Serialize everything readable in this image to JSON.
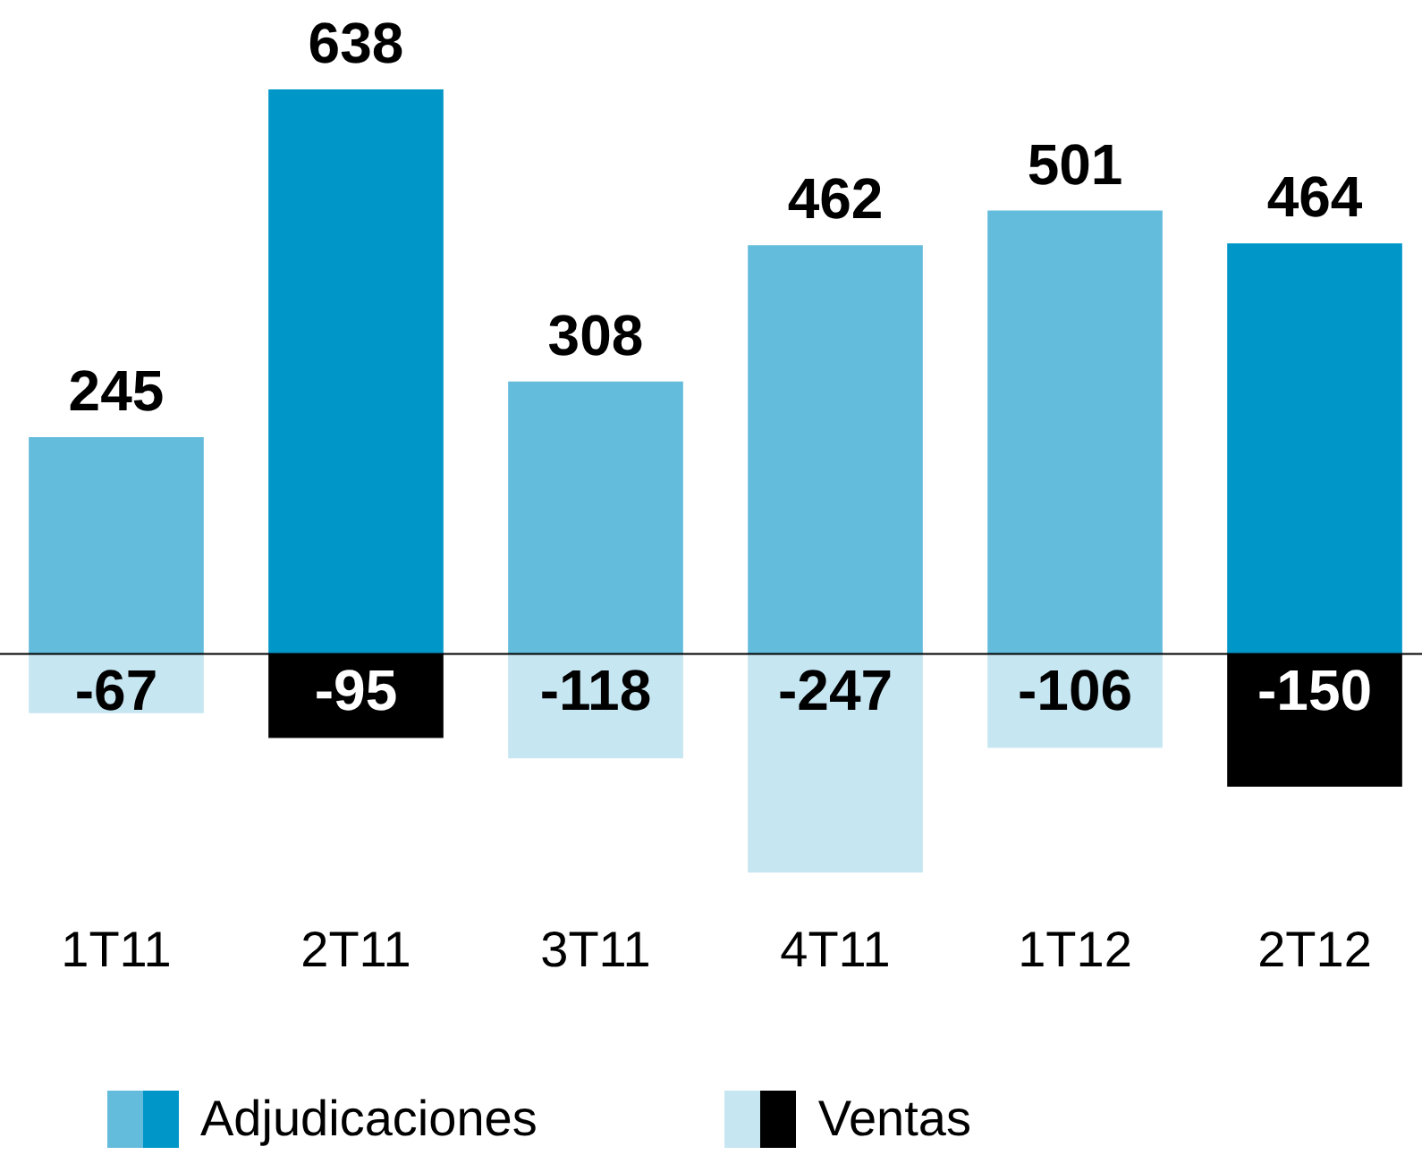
{
  "chart_data": {
    "type": "bar",
    "stacked": true,
    "categories": [
      "1T11",
      "2T11",
      "3T11",
      "4T11",
      "1T12",
      "2T12"
    ],
    "series": [
      {
        "name": "Adjudicaciones",
        "color": "#64bcdc",
        "colors": [
          "#64bcdc",
          "#0096c8",
          "#64bcdc",
          "#64bcdc",
          "#64bcdc",
          "#0096c8"
        ],
        "values": [
          245,
          638,
          308,
          462,
          501,
          464
        ]
      },
      {
        "name": "Ventas",
        "color": "#c6e6f2",
        "colors": [
          "#c6e6f2",
          "#000000",
          "#c6e6f2",
          "#c6e6f2",
          "#c6e6f2",
          "#000000"
        ],
        "values": [
          -67,
          -95,
          -118,
          -247,
          -106,
          -150
        ]
      }
    ],
    "data_labels": true,
    "legend": "bottom"
  }
}
